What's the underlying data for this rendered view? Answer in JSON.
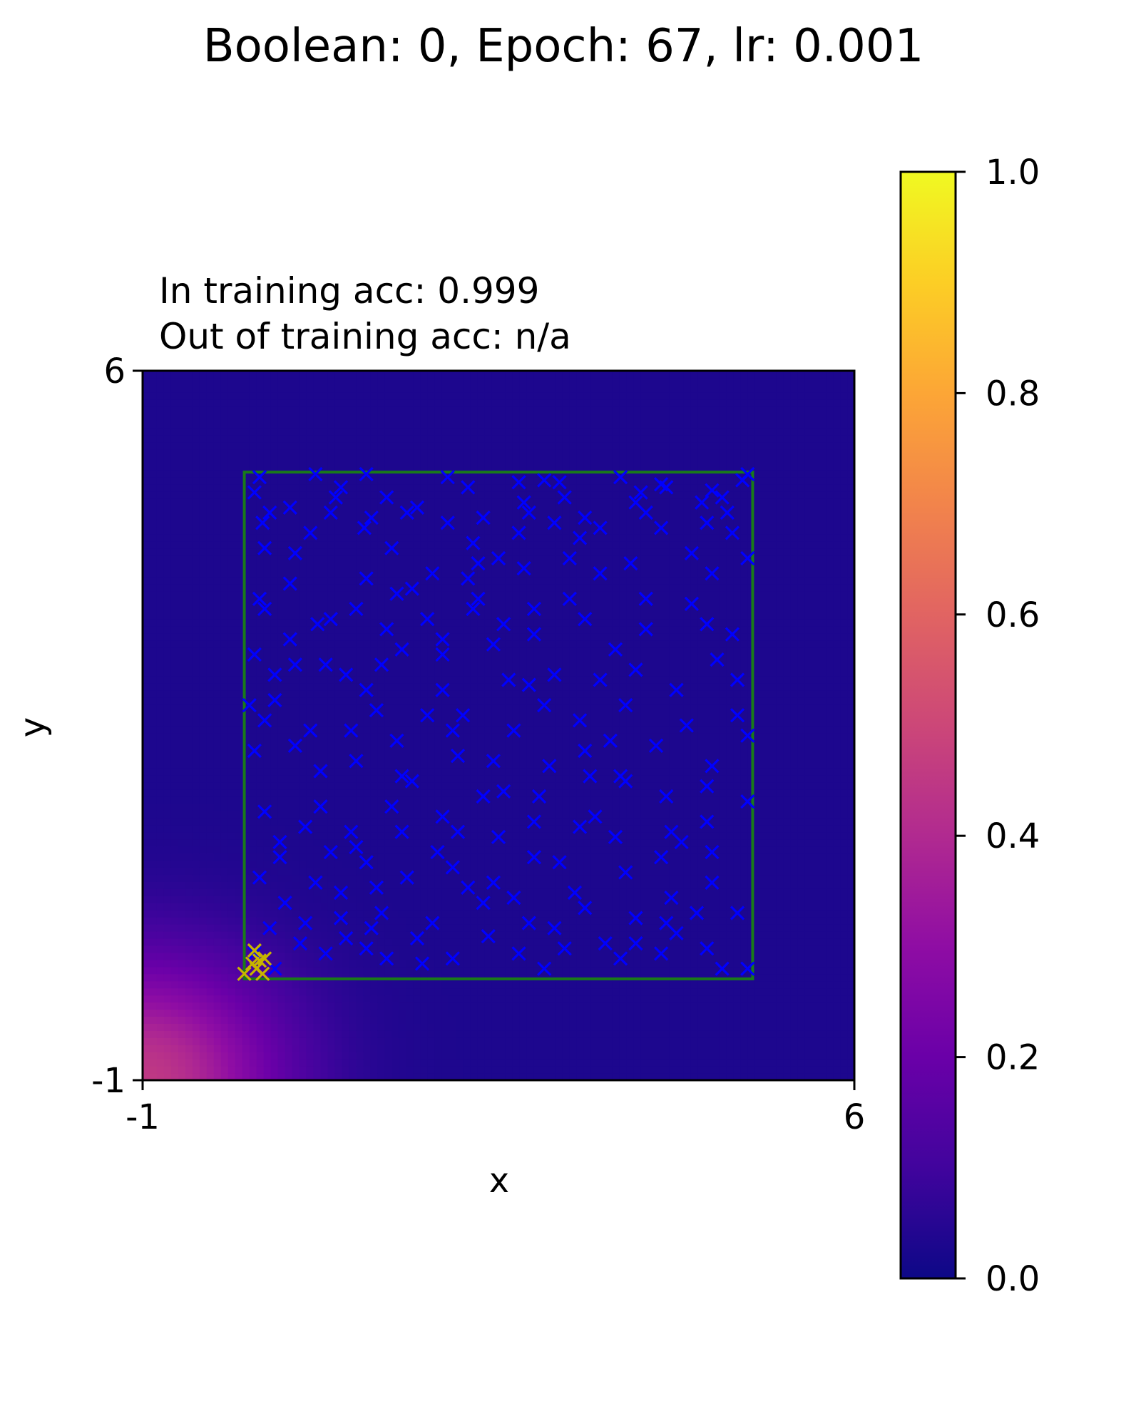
{
  "chart_data": {
    "type": "heatmap",
    "title": "Boolean: 0, Epoch: 67, lr: 0.001",
    "subtitle_lines": [
      "In training acc: 0.999",
      "Out of training acc: n/a"
    ],
    "xlabel": "x",
    "ylabel": "y",
    "xlim": [
      -1,
      6
    ],
    "ylim": [
      -1,
      6
    ],
    "x_ticks": [
      -1,
      6
    ],
    "y_ticks": [
      -1,
      6
    ],
    "x_tick_labels": [
      "-1",
      "6"
    ],
    "y_tick_labels": [
      "-1",
      "6"
    ],
    "colormap": "plasma",
    "colorbar": {
      "range": [
        0.0,
        1.0
      ],
      "ticks": [
        0.0,
        0.2,
        0.4,
        0.6,
        0.8,
        1.0
      ],
      "tick_labels": [
        "0.0",
        "0.2",
        "0.4",
        "0.6",
        "0.8",
        "1.0"
      ]
    },
    "grid": false,
    "heatmap_model": {
      "description": "predicted probability, high near bottom-left corner",
      "peak_value": 0.45,
      "peak_at": [
        -1,
        -1
      ],
      "background_value": 0.03
    },
    "training_box": {
      "x": [
        0,
        5
      ],
      "y": [
        0,
        5
      ],
      "color": "#1a7a1a"
    },
    "series": [
      {
        "label_value": 0,
        "color": "#0000ff",
        "marker": "x",
        "points": [
          [
            0.15,
            4.95
          ],
          [
            0.7,
            4.98
          ],
          [
            1.2,
            4.98
          ],
          [
            2.0,
            4.95
          ],
          [
            3.7,
            4.95
          ],
          [
            2.7,
            4.9
          ],
          [
            2.95,
            4.92
          ],
          [
            3.1,
            4.9
          ],
          [
            4.1,
            4.88
          ],
          [
            4.9,
            4.92
          ],
          [
            4.95,
            4.98
          ],
          [
            0.1,
            4.8
          ],
          [
            0.95,
            4.85
          ],
          [
            1.4,
            4.75
          ],
          [
            2.2,
            4.85
          ],
          [
            3.15,
            4.75
          ],
          [
            3.9,
            4.8
          ],
          [
            4.15,
            4.85
          ],
          [
            4.6,
            4.82
          ],
          [
            0.25,
            4.6
          ],
          [
            0.45,
            4.65
          ],
          [
            0.85,
            4.6
          ],
          [
            1.25,
            4.55
          ],
          [
            1.7,
            4.65
          ],
          [
            2.35,
            4.55
          ],
          [
            2.8,
            4.6
          ],
          [
            3.35,
            4.55
          ],
          [
            3.85,
            4.7
          ],
          [
            4.5,
            4.7
          ],
          [
            4.75,
            4.6
          ],
          [
            0.18,
            4.5
          ],
          [
            1.18,
            4.45
          ],
          [
            2.0,
            4.5
          ],
          [
            2.7,
            4.4
          ],
          [
            3.05,
            4.5
          ],
          [
            3.5,
            4.45
          ],
          [
            4.1,
            4.45
          ],
          [
            4.55,
            4.5
          ],
          [
            4.8,
            4.4
          ],
          [
            0.5,
            4.2
          ],
          [
            0.45,
            3.9
          ],
          [
            1.2,
            3.95
          ],
          [
            1.65,
            3.85
          ],
          [
            2.2,
            3.95
          ],
          [
            2.5,
            4.15
          ],
          [
            2.75,
            4.05
          ],
          [
            3.2,
            4.15
          ],
          [
            3.8,
            4.1
          ],
          [
            4.4,
            4.2
          ],
          [
            4.95,
            4.15
          ],
          [
            0.2,
            3.65
          ],
          [
            0.72,
            3.5
          ],
          [
            1.1,
            3.65
          ],
          [
            1.4,
            3.45
          ],
          [
            1.8,
            3.55
          ],
          [
            2.25,
            3.65
          ],
          [
            2.85,
            3.4
          ],
          [
            3.35,
            3.55
          ],
          [
            3.95,
            3.45
          ],
          [
            4.55,
            3.5
          ],
          [
            0.1,
            3.2
          ],
          [
            0.5,
            3.1
          ],
          [
            1.0,
            3.0
          ],
          [
            1.55,
            3.25
          ],
          [
            1.95,
            3.2
          ],
          [
            2.45,
            3.3
          ],
          [
            2.8,
            2.9
          ],
          [
            3.05,
            3.0
          ],
          [
            3.5,
            2.95
          ],
          [
            3.85,
            3.05
          ],
          [
            4.65,
            3.15
          ],
          [
            0.05,
            2.7
          ],
          [
            0.2,
            2.55
          ],
          [
            0.65,
            2.45
          ],
          [
            1.3,
            2.65
          ],
          [
            1.5,
            2.35
          ],
          [
            1.95,
            2.85
          ],
          [
            2.15,
            2.6
          ],
          [
            2.65,
            2.45
          ],
          [
            3.3,
            2.55
          ],
          [
            3.75,
            2.7
          ],
          [
            4.35,
            2.5
          ],
          [
            4.85,
            2.6
          ],
          [
            0.1,
            2.25
          ],
          [
            0.75,
            2.05
          ],
          [
            1.1,
            2.15
          ],
          [
            1.55,
            2.0
          ],
          [
            2.1,
            2.2
          ],
          [
            2.55,
            1.85
          ],
          [
            3.0,
            2.1
          ],
          [
            3.35,
            2.25
          ],
          [
            3.75,
            1.95
          ],
          [
            4.15,
            1.8
          ],
          [
            4.55,
            1.9
          ],
          [
            4.95,
            1.75
          ],
          [
            0.2,
            1.65
          ],
          [
            0.6,
            1.5
          ],
          [
            1.05,
            1.45
          ],
          [
            1.45,
            1.7
          ],
          [
            1.95,
            1.6
          ],
          [
            2.35,
            1.8
          ],
          [
            2.85,
            1.55
          ],
          [
            3.3,
            1.5
          ],
          [
            3.65,
            1.4
          ],
          [
            4.2,
            1.45
          ],
          [
            4.6,
            1.25
          ],
          [
            0.35,
            1.2
          ],
          [
            0.85,
            1.25
          ],
          [
            1.2,
            1.15
          ],
          [
            1.6,
            1.0
          ],
          [
            2.05,
            1.1
          ],
          [
            2.45,
            0.95
          ],
          [
            2.85,
            1.2
          ],
          [
            3.25,
            0.85
          ],
          [
            3.75,
            1.05
          ],
          [
            4.2,
            0.8
          ],
          [
            4.6,
            0.95
          ],
          [
            0.15,
            1.0
          ],
          [
            0.4,
            0.75
          ],
          [
            0.95,
            0.6
          ],
          [
            1.35,
            0.65
          ],
          [
            1.85,
            0.55
          ],
          [
            2.35,
            0.75
          ],
          [
            2.8,
            0.55
          ],
          [
            3.35,
            0.7
          ],
          [
            3.85,
            0.6
          ],
          [
            4.25,
            0.45
          ],
          [
            4.85,
            0.65
          ],
          [
            0.25,
            0.5
          ],
          [
            0.8,
            0.25
          ],
          [
            1.2,
            0.3
          ],
          [
            1.7,
            0.4
          ],
          [
            2.05,
            0.2
          ],
          [
            2.7,
            0.25
          ],
          [
            3.15,
            0.3
          ],
          [
            3.7,
            0.2
          ],
          [
            4.1,
            0.25
          ],
          [
            4.55,
            0.3
          ],
          [
            4.95,
            0.1
          ],
          [
            0.95,
            0.85
          ],
          [
            1.25,
            0.5
          ],
          [
            2.4,
            0.42
          ],
          [
            3.55,
            0.35
          ],
          [
            0.7,
            0.95
          ],
          [
            1.75,
            0.15
          ],
          [
            4.7,
            0.1
          ],
          [
            0.55,
            0.35
          ],
          [
            2.95,
            0.1
          ],
          [
            3.6,
            2.35
          ],
          [
            1.9,
            1.25
          ],
          [
            1.05,
            2.45
          ],
          [
            0.3,
            3.0
          ],
          [
            4.6,
            4.0
          ],
          [
            2.6,
            2.95
          ],
          [
            3.95,
            3.75
          ],
          [
            1.45,
            4.25
          ],
          [
            0.15,
            3.75
          ],
          [
            2.3,
            3.75
          ],
          [
            4.3,
            1.35
          ],
          [
            3.4,
            2.0
          ],
          [
            1.65,
            1.95
          ],
          [
            0.65,
            4.4
          ],
          [
            4.8,
            3.4
          ],
          [
            3.05,
            0.5
          ],
          [
            2.25,
            4.3
          ],
          [
            0.35,
            1.35
          ],
          [
            1.3,
            0.9
          ],
          [
            2.55,
            3.5
          ],
          [
            4.05,
            2.3
          ],
          [
            1.85,
            4.0
          ],
          [
            3.5,
            4.0
          ],
          [
            0.5,
            2.3
          ],
          [
            2.9,
            1.8
          ],
          [
            4.45,
            0.65
          ],
          [
            1.1,
            1.3
          ],
          [
            3.2,
            3.75
          ],
          [
            0.85,
            3.55
          ],
          [
            2.2,
            0.9
          ],
          [
            4.85,
            2.95
          ],
          [
            1.5,
            3.8
          ],
          [
            3.85,
            0.35
          ],
          [
            0.3,
            0.1
          ],
          [
            2.75,
            4.7
          ],
          [
            4.25,
            2.85
          ],
          [
            1.2,
            2.85
          ],
          [
            0.6,
            0.55
          ],
          [
            3.1,
            1.15
          ],
          [
            2.45,
            2.15
          ],
          [
            4.7,
            4.75
          ],
          [
            1.95,
            3.35
          ],
          [
            0.9,
            4.75
          ],
          [
            3.65,
            3.25
          ],
          [
            4.1,
            1.2
          ],
          [
            1.4,
            0.2
          ],
          [
            2.1,
            1.45
          ],
          [
            0.1,
            0.25
          ],
          [
            4.95,
            2.4
          ],
          [
            1.8,
            2.6
          ],
          [
            3.45,
            1.6
          ],
          [
            2.65,
            0.8
          ],
          [
            0.75,
            1.7
          ],
          [
            4.4,
            3.7
          ],
          [
            1.6,
            4.6
          ],
          [
            3.3,
            4.35
          ],
          [
            0.2,
            4.25
          ],
          [
            2.05,
            2.45
          ],
          [
            4.6,
            2.1
          ],
          [
            1.35,
            3.1
          ],
          [
            2.95,
            2.7
          ],
          [
            0.45,
            3.35
          ],
          [
            3.95,
            4.6
          ],
          [
            1.0,
            0.4
          ],
          [
            2.5,
            1.4
          ],
          [
            4.15,
            0.55
          ],
          [
            0.8,
            3.1
          ],
          [
            3.7,
            2.0
          ],
          [
            1.55,
            1.45
          ],
          [
            2.3,
            4.1
          ],
          [
            4.55,
            1.55
          ],
          [
            0.3,
            2.75
          ],
          [
            2.85,
            3.65
          ]
        ]
      },
      {
        "label_value": 1,
        "color": "#c8b400",
        "marker": "x",
        "points": [
          [
            0.0,
            0.05
          ],
          [
            0.12,
            0.1
          ],
          [
            0.18,
            0.05
          ],
          [
            0.15,
            0.18
          ],
          [
            0.1,
            0.28
          ],
          [
            0.2,
            0.2
          ],
          [
            0.08,
            0.15
          ]
        ]
      }
    ]
  }
}
